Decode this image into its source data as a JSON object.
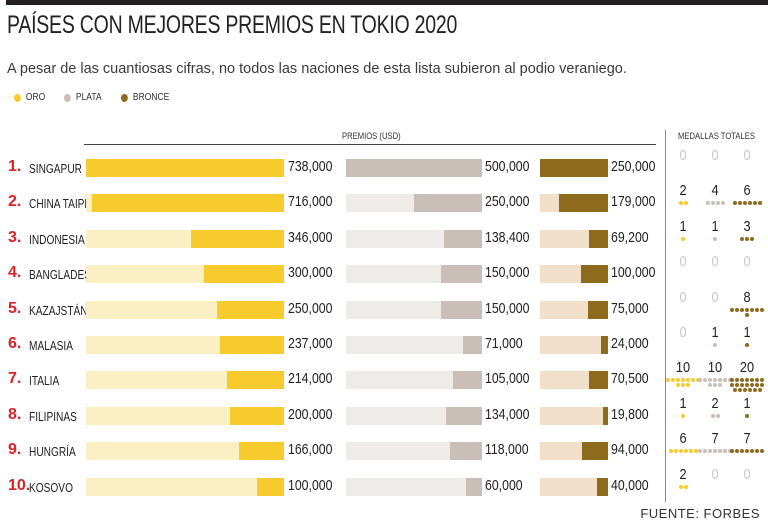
{
  "title": "PAÍSES CON MEJORES PREMIOS EN TOKIO 2020",
  "subtitle": "A pesar de las cuantiosas cifras, no todos las naciones de esta lista subieron  al podio veraniego.",
  "legend": [
    {
      "label": "ORO",
      "color": "#f7ca2e"
    },
    {
      "label": "PLATA",
      "color": "#c9bfb8"
    },
    {
      "label": "BRONCE",
      "color": "#8d6a1c"
    }
  ],
  "premios_header": "PREMIOS (USD)",
  "medallas_header": "MEDALLAS TOTALES",
  "source": "FUENTE: FORBES",
  "colors": {
    "oro": "#f7ca2e",
    "oro_track": "#fbefc4",
    "plata": "#c9bfb8",
    "plata_track": "#eeebe8",
    "bronce": "#8d6a1c",
    "bronce_track": "#f2dfca",
    "rank": "#d8232a",
    "zero": "#c8c8c8"
  },
  "chart_data": {
    "type": "bar",
    "title": "PAÍSES CON MEJORES PREMIOS EN TOKIO 2020",
    "subtitle": "A pesar de las cuantiosas cifras, no todos las naciones de esta lista subieron  al podio veraniego.",
    "ylabel": "PREMIOS (USD)",
    "categories": [
      "SINGAPUR",
      "CHINA TAIPÉI",
      "INDONESIA",
      "BANGLADESH",
      "KAZAJSTÁN",
      "MALASIA",
      "ITALIA",
      "FILIPINAS",
      "HUNGRÍA",
      "KOSOVO"
    ],
    "ranks": [
      "1.",
      "2.",
      "3.",
      "4.",
      "5.",
      "6.",
      "7.",
      "8.",
      "9.",
      "10."
    ],
    "series": [
      {
        "name": "ORO",
        "key": "oro",
        "max": 738000,
        "values": [
          738000,
          716000,
          346000,
          300000,
          250000,
          237000,
          214000,
          200000,
          166000,
          100000
        ],
        "labels": [
          "738,000",
          "716,000",
          "346,000",
          "300,000",
          "250,000",
          "237,000",
          "214,000",
          "200,000",
          "166,000",
          "100,000"
        ]
      },
      {
        "name": "PLATA",
        "key": "plata",
        "max": 500000,
        "values": [
          500000,
          250000,
          138400,
          150000,
          150000,
          71000,
          105000,
          134000,
          118000,
          60000
        ],
        "labels": [
          "500,000",
          "250,000",
          "138,400",
          "150,000",
          "150,000",
          "71,000",
          "105,000",
          "134,000",
          "118,000",
          "60,000"
        ]
      },
      {
        "name": "BRONCE",
        "key": "bronce",
        "max": 250000,
        "values": [
          250000,
          179000,
          69200,
          100000,
          75000,
          24000,
          70500,
          19800,
          94000,
          40000
        ],
        "labels": [
          "250,000",
          "179,000",
          "69,200",
          "100,000",
          "75,000",
          "24,000",
          "70,500",
          "19,800",
          "94,000",
          "40,000"
        ]
      }
    ],
    "medals": {
      "oro": [
        0,
        2,
        1,
        0,
        0,
        0,
        10,
        1,
        6,
        2
      ],
      "plata": [
        0,
        4,
        1,
        0,
        0,
        1,
        10,
        2,
        7,
        0
      ],
      "bronce": [
        0,
        6,
        3,
        0,
        8,
        1,
        20,
        1,
        7,
        0
      ]
    }
  }
}
